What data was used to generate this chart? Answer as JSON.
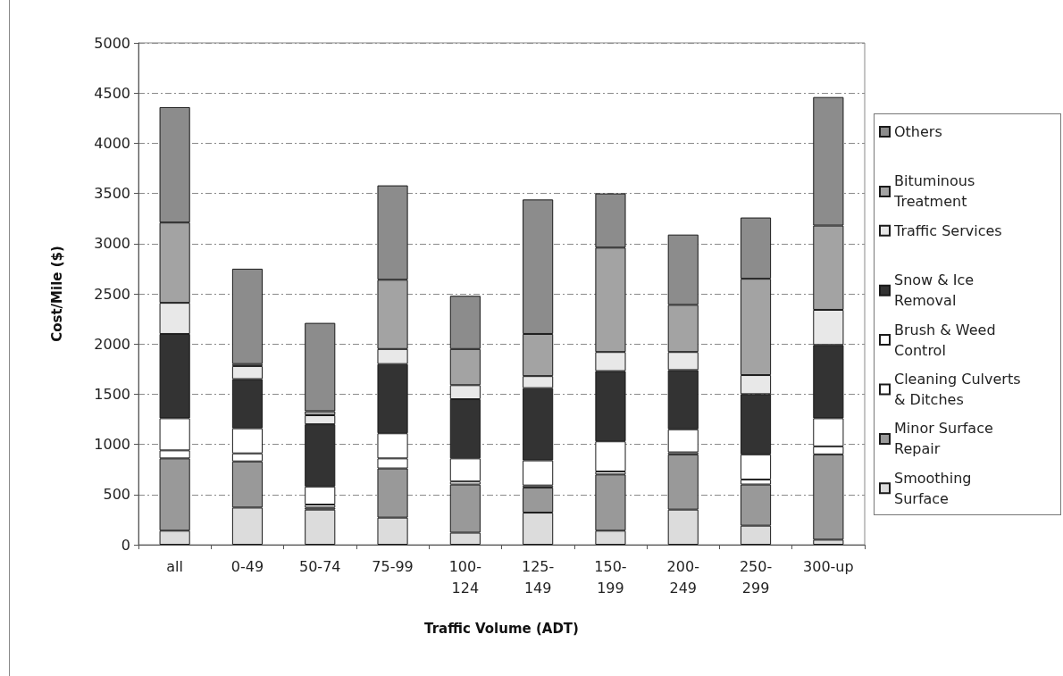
{
  "chart_data": {
    "type": "bar",
    "stacked": true,
    "xlabel": "Traffic Volume (ADT)",
    "ylabel": "Cost/Mile ($)",
    "categories": [
      "all",
      "0-49",
      "50-74",
      "75-99",
      "100-124",
      "125-149",
      "150-199",
      "200-249",
      "250-299",
      "300-up"
    ],
    "ylim": [
      0,
      5000
    ],
    "yticks": [
      0,
      500,
      1000,
      1500,
      2000,
      2500,
      3000,
      3500,
      4000,
      4500,
      5000
    ],
    "grid": "y",
    "legend": "right",
    "series": [
      {
        "name": "Smoothing Surface",
        "color": "#dcdcdc",
        "values": [
          140,
          370,
          350,
          270,
          120,
          320,
          140,
          350,
          190,
          50
        ]
      },
      {
        "name": "Minor Surface Repair",
        "color": "#999999",
        "values": [
          720,
          460,
          20,
          490,
          480,
          250,
          560,
          550,
          410,
          850
        ]
      },
      {
        "name": "Cleaning Culverts & Ditches",
        "color": "#ffffff",
        "values": [
          80,
          80,
          30,
          100,
          30,
          20,
          30,
          20,
          50,
          80
        ]
      },
      {
        "name": "Brush & Weed Control",
        "color": "#ffffff",
        "values": [
          320,
          250,
          180,
          250,
          230,
          250,
          300,
          230,
          250,
          280
        ]
      },
      {
        "name": "Snow & Ice Removal",
        "color": "#333333",
        "values": [
          840,
          490,
          620,
          690,
          590,
          720,
          700,
          590,
          600,
          730
        ]
      },
      {
        "name": "Traffic Services",
        "color": "#e8e8e8",
        "values": [
          310,
          130,
          90,
          150,
          140,
          120,
          190,
          180,
          190,
          350
        ]
      },
      {
        "name": "Bituminous Treatment",
        "color": "#a3a3a3",
        "values": [
          800,
          20,
          40,
          690,
          360,
          420,
          1040,
          470,
          960,
          840
        ]
      },
      {
        "name": "Others",
        "color": "#8c8c8c",
        "values": [
          1150,
          950,
          880,
          940,
          530,
          1340,
          540,
          700,
          610,
          1280
        ]
      }
    ]
  }
}
